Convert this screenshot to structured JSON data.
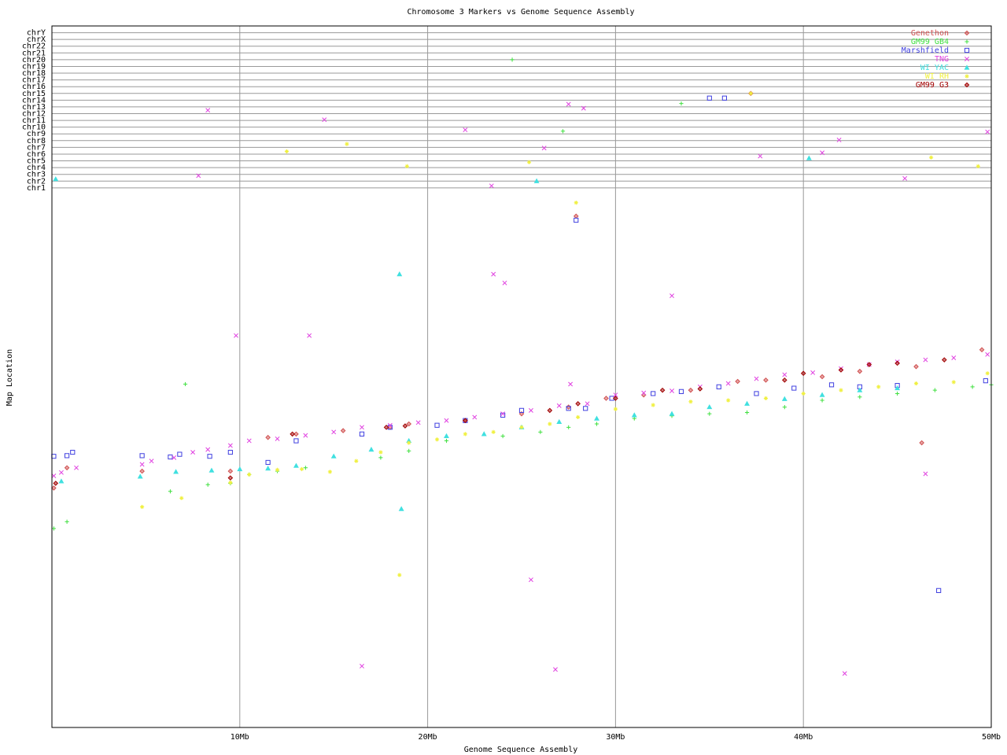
{
  "chart_data": {
    "type": "scatter",
    "title": "Chromosome 3 Markers vs Genome Sequence Assembly",
    "x_label": "Genome Sequence Assembly",
    "y_label": "Map Location",
    "xlim": [
      0,
      50
    ],
    "xticks": [
      {
        "value": 10,
        "label": "10Mb"
      },
      {
        "value": 20,
        "label": "20Mb"
      },
      {
        "value": 30,
        "label": "30Mb"
      },
      {
        "value": 40,
        "label": "40Mb"
      },
      {
        "value": 50,
        "label": "50Mb"
      }
    ],
    "ylim": [
      -3,
      101
    ],
    "yticks": [
      {
        "value": 77,
        "label": "chr1"
      },
      {
        "value": 78,
        "label": "chr2"
      },
      {
        "value": 79,
        "label": "chr3"
      },
      {
        "value": 80,
        "label": "chr4"
      },
      {
        "value": 81,
        "label": "chr5"
      },
      {
        "value": 82,
        "label": "chr6"
      },
      {
        "value": 83,
        "label": "chr7"
      },
      {
        "value": 84,
        "label": "chr8"
      },
      {
        "value": 85,
        "label": "chr9"
      },
      {
        "value": 86,
        "label": "chr10"
      },
      {
        "value": 87,
        "label": "chr11"
      },
      {
        "value": 88,
        "label": "chr12"
      },
      {
        "value": 89,
        "label": "chr13"
      },
      {
        "value": 90,
        "label": "chr14"
      },
      {
        "value": 91,
        "label": "chr15"
      },
      {
        "value": 92,
        "label": "chr16"
      },
      {
        "value": 93,
        "label": "chr17"
      },
      {
        "value": 94,
        "label": "chr18"
      },
      {
        "value": 95,
        "label": "chr19"
      },
      {
        "value": 96,
        "label": "chr20"
      },
      {
        "value": 97,
        "label": "chr21"
      },
      {
        "value": 98,
        "label": "chr22"
      },
      {
        "value": 99,
        "label": "chrX"
      },
      {
        "value": 100,
        "label": "chrY"
      }
    ],
    "grid": true,
    "legend": "top-right",
    "series": [
      {
        "name": "Genethon",
        "color": "#d05050",
        "marker": "diamond",
        "x": [
          0.1,
          0.8,
          4.8,
          9.5,
          11.5,
          13,
          15.5,
          18,
          19,
          22,
          25,
          27.5,
          29.5,
          31.5,
          34,
          36.5,
          38,
          41,
          43,
          46,
          49.5,
          27.9,
          37.2,
          46.3
        ],
        "values": [
          32.5,
          35.5,
          35,
          35,
          40,
          40.5,
          41,
          41.5,
          42,
          42.5,
          43.5,
          44.5,
          45.8,
          46.3,
          47,
          48.3,
          48.5,
          49,
          49.8,
          50.5,
          53,
          72.8,
          91,
          39.2
        ]
      },
      {
        "name": "GM99 GB4",
        "color": "#40e040",
        "marker": "plus",
        "x": [
          0.1,
          0.8,
          6.3,
          8.3,
          9.5,
          10.5,
          12,
          13.5,
          17.5,
          19,
          21,
          24,
          26,
          27.5,
          29,
          31,
          33,
          35,
          37,
          39,
          41,
          43,
          45,
          47,
          49,
          50,
          24.5,
          33.5,
          27.2,
          7.1
        ],
        "values": [
          26.5,
          27.5,
          32,
          33,
          33.2,
          34.5,
          35,
          35.5,
          37,
          38,
          39.5,
          40.2,
          40.8,
          41.5,
          42,
          42.8,
          43.2,
          43.5,
          43.7,
          44.5,
          45.5,
          46,
          46.5,
          47,
          47.5,
          47.8,
          96,
          89.5,
          85.4,
          47.9
        ]
      },
      {
        "name": "Marshfield",
        "color": "#4040e0",
        "marker": "square",
        "x": [
          0.1,
          0.8,
          1.1,
          4.8,
          6.3,
          6.8,
          8.4,
          9.5,
          11.5,
          13,
          16.5,
          18,
          20.5,
          22,
          24,
          25,
          27.5,
          28.4,
          29.8,
          32,
          33.5,
          35.5,
          37.5,
          39.5,
          41.5,
          43,
          45,
          47.2,
          49.7,
          35,
          35.8,
          27.9
        ],
        "values": [
          37.2,
          37.3,
          37.8,
          37.3,
          37.1,
          37.5,
          37.2,
          37.8,
          36.3,
          39.5,
          40.5,
          41.5,
          41.8,
          42.5,
          43.3,
          44,
          44.3,
          44.3,
          45.8,
          46.5,
          46.8,
          47.5,
          46.5,
          47.3,
          47.8,
          47.5,
          47.7,
          17.3,
          48.4,
          90.3,
          90.3,
          72.2
        ]
      },
      {
        "name": "TNG",
        "color": "#e040e0",
        "marker": "x",
        "x": [
          0.1,
          0.5,
          1.3,
          4.8,
          5.3,
          6.5,
          7.5,
          8.3,
          9.5,
          10.5,
          12,
          13.5,
          15,
          16.5,
          18,
          19.5,
          21,
          22.5,
          24,
          25.5,
          27,
          28.5,
          30,
          31.5,
          33,
          34.5,
          36,
          37.5,
          39,
          40.5,
          42,
          43.5,
          45,
          46.5,
          48,
          49.8,
          9.8,
          13.7,
          23.5,
          24.1,
          25.5,
          26.8,
          16.5,
          42.2,
          46.5,
          33,
          27.6,
          8.3,
          7.8,
          14.5,
          22,
          23.4,
          26.2,
          27.5,
          28.3,
          37.7,
          41,
          41.9,
          45.4,
          49.8
        ],
        "values": [
          34.3,
          34.8,
          35.5,
          36,
          36.5,
          37,
          37.8,
          38.2,
          38.8,
          39.5,
          39.8,
          40.3,
          40.8,
          41.5,
          41.8,
          42.2,
          42.5,
          43,
          43.5,
          44,
          44.7,
          45,
          46.3,
          46.6,
          46.9,
          47.5,
          48,
          48.7,
          49.3,
          49.6,
          50.2,
          50.8,
          51.2,
          51.5,
          51.8,
          52.3,
          55.1,
          55.1,
          64.2,
          62.9,
          18.9,
          5.6,
          6.1,
          5,
          34.6,
          61,
          47.9,
          88.5,
          78.8,
          87.1,
          85.6,
          77.3,
          82.9,
          89.4,
          88.8,
          81.7,
          82.2,
          84.1,
          78.4,
          85.3
        ]
      },
      {
        "name": "WI YAC",
        "color": "#40e0e0",
        "marker": "triangle",
        "x": [
          0.5,
          4.7,
          6.6,
          8.5,
          10,
          11.5,
          13,
          15,
          17,
          19,
          21,
          23,
          25,
          27,
          29,
          31,
          33,
          35,
          37,
          39,
          41,
          43,
          45,
          18.5,
          18.6,
          25.8,
          40.3,
          0.2
        ],
        "values": [
          33.5,
          34.2,
          34.9,
          35.1,
          35.3,
          35.4,
          35.8,
          37.2,
          38.2,
          39.5,
          40.2,
          40.5,
          41.5,
          42.3,
          42.8,
          43.3,
          43.5,
          44.5,
          45,
          45.7,
          46.3,
          47,
          47.3,
          64.2,
          29.4,
          78,
          81.4,
          78.3
        ]
      },
      {
        "name": "WI RH",
        "color": "#f0f040",
        "marker": "star",
        "x": [
          4.8,
          6.9,
          9.5,
          10.5,
          12,
          13.3,
          14.8,
          16.2,
          17.5,
          19,
          20.5,
          22,
          23.5,
          25,
          26.5,
          28,
          30,
          32,
          34,
          36,
          38,
          40,
          42,
          44,
          46,
          48,
          49.8,
          18.5,
          12.5,
          15.7,
          18.9,
          25.4,
          27.9,
          46.8,
          49.3,
          37.2
        ],
        "values": [
          29.7,
          31,
          33.3,
          34.5,
          35.2,
          35.3,
          34.9,
          36.5,
          37.8,
          39.2,
          39.7,
          40.5,
          40.8,
          41.5,
          42,
          43,
          44.2,
          44.8,
          45.3,
          45.5,
          45.8,
          46.5,
          47,
          47.5,
          48,
          48.2,
          49.5,
          19.6,
          82.4,
          83.5,
          80.2,
          80.8,
          74.8,
          81.5,
          80.2,
          91
        ]
      },
      {
        "name": "GM99 G3",
        "color": "#a00000",
        "marker": "diamond",
        "x": [
          9.5,
          12.8,
          17.8,
          18.8,
          22,
          26.5,
          28,
          30,
          32.5,
          34.5,
          39,
          40,
          42,
          43.5,
          45,
          47.5,
          0.2
        ],
        "values": [
          34,
          40.5,
          41.5,
          41.7,
          42.5,
          44,
          45,
          45.8,
          47,
          47.2,
          48.5,
          49.5,
          50,
          50.8,
          51,
          51.5,
          33.2
        ]
      }
    ]
  }
}
